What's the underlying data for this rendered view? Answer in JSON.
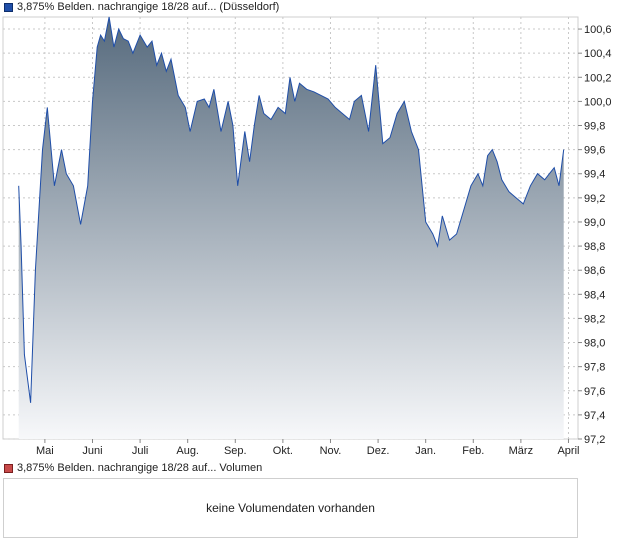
{
  "legend_price": "3,875% Belden. nachrangige 18/28 auf... (Düsseldorf)",
  "legend_volume": "3,875% Belden. nachrangige 18/28 auf... Volumen",
  "volume_message": "keine Volumendaten vorhanden",
  "colors": {
    "line": "#1f4ea8",
    "area_top": "#566a7d",
    "area_bottom": "#f7f8fa",
    "grid": "#c8c8c8",
    "volume_swatch": "#c84a4a"
  },
  "chart_data": {
    "type": "area",
    "x_labels": [
      "Mai",
      "Juni",
      "Juli",
      "Aug.",
      "Sep.",
      "Okt.",
      "Nov.",
      "Dez.",
      "Jan.",
      "Feb.",
      "März",
      "April"
    ],
    "y_ticks": [
      "100,6",
      "100,4",
      "100,2",
      "100,0",
      "99,8",
      "99,6",
      "99,4",
      "99,2",
      "99,0",
      "98,8",
      "98,6",
      "98,4",
      "98,2",
      "98,0",
      "97,8",
      "97,6",
      "97,4",
      "97,2"
    ],
    "ylim": [
      97.2,
      100.7
    ],
    "grid": true,
    "series": [
      {
        "x": [
          0,
          0.05,
          0.12,
          0.25,
          0.35,
          0.5,
          0.6,
          0.75,
          0.9,
          1.0,
          1.15,
          1.3,
          1.45,
          1.55,
          1.65,
          1.72,
          1.8,
          1.9,
          2.0,
          2.1,
          2.2,
          2.3,
          2.4,
          2.55,
          2.7,
          2.8,
          2.9,
          3.0,
          3.1,
          3.2,
          3.35,
          3.5,
          3.6,
          3.75,
          3.9,
          4.0,
          4.1,
          4.25,
          4.4,
          4.5,
          4.6,
          4.75,
          4.85,
          4.95,
          5.05,
          5.15,
          5.3,
          5.45,
          5.6,
          5.7,
          5.8,
          5.9,
          6.05,
          6.2,
          6.35,
          6.5,
          6.65,
          6.8,
          6.95,
          7.05,
          7.2,
          7.35,
          7.5,
          7.65,
          7.8,
          7.95,
          8.1,
          8.25,
          8.4,
          8.55,
          8.7,
          8.8,
          8.9,
          9.05,
          9.2,
          9.35,
          9.5,
          9.65,
          9.75,
          9.85,
          9.95,
          10.05,
          10.15,
          10.3,
          10.45,
          10.6,
          10.75,
          10.9,
          11.05,
          11.15,
          11.25,
          11.35,
          11.45
        ],
        "y": [
          99.3,
          98.8,
          97.9,
          97.5,
          98.6,
          99.6,
          99.95,
          99.3,
          99.6,
          99.4,
          99.3,
          98.98,
          99.3,
          100.0,
          100.45,
          100.55,
          100.5,
          100.7,
          100.45,
          100.6,
          100.52,
          100.5,
          100.4,
          100.55,
          100.45,
          100.5,
          100.3,
          100.4,
          100.25,
          100.35,
          100.05,
          99.95,
          99.75,
          100.0,
          100.02,
          99.95,
          100.1,
          99.75,
          100.0,
          99.8,
          99.3,
          99.75,
          99.5,
          99.8,
          100.05,
          99.9,
          99.85,
          99.95,
          99.9,
          100.2,
          100.0,
          100.15,
          100.1,
          100.08,
          100.05,
          100.02,
          99.95,
          99.9,
          99.85,
          100.0,
          100.05,
          99.75,
          100.3,
          99.65,
          99.7,
          99.9,
          100.0,
          99.75,
          99.6,
          99.0,
          98.9,
          98.8,
          99.05,
          98.85,
          98.9,
          99.1,
          99.3,
          99.4,
          99.3,
          99.55,
          99.6,
          99.5,
          99.35,
          99.25,
          99.2,
          99.15,
          99.3,
          99.4,
          99.35,
          99.4,
          99.45,
          99.3,
          99.6
        ]
      }
    ]
  }
}
